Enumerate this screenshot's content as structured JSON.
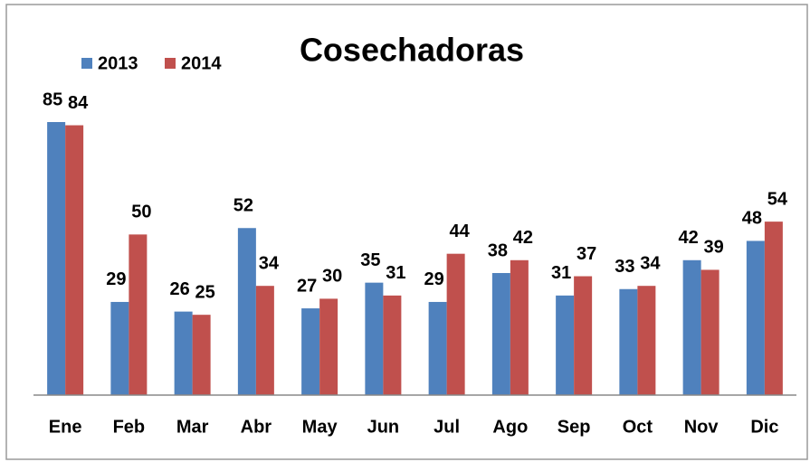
{
  "chart_data": {
    "type": "bar",
    "title": "Cosechadoras",
    "categories": [
      "Ene",
      "Feb",
      "Mar",
      "Abr",
      "May",
      "Jun",
      "Jul",
      "Ago",
      "Sep",
      "Oct",
      "Nov",
      "Dic"
    ],
    "series": [
      {
        "name": "2013",
        "color": "#4f81bd",
        "values": [
          85,
          29,
          26,
          52,
          27,
          35,
          29,
          38,
          31,
          33,
          42,
          48
        ]
      },
      {
        "name": "2014",
        "color": "#c0504d",
        "values": [
          84,
          50,
          25,
          34,
          30,
          31,
          44,
          42,
          37,
          34,
          39,
          54
        ]
      }
    ]
  }
}
